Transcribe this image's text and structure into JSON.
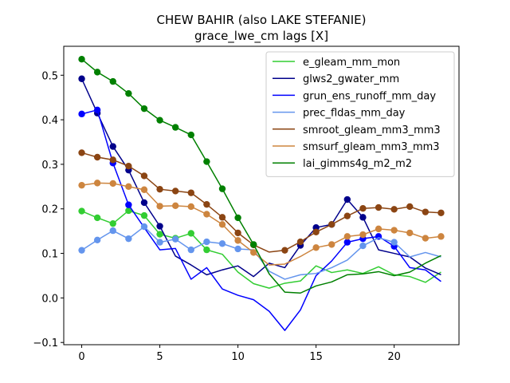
{
  "chart_data": {
    "type": "line",
    "title": "CHEW BAHIR (also LAKE STEFANIE)",
    "subtitle": "grace_lwe_cm lags [X]",
    "xlabel": "",
    "ylabel": "",
    "xlim": [
      -1.15,
      24.15
    ],
    "ylim": [
      -0.105,
      0.565
    ],
    "xticks": [
      0,
      5,
      10,
      15,
      20
    ],
    "yticks": [
      -0.1,
      0.0,
      0.1,
      0.2,
      0.3,
      0.4,
      0.5
    ],
    "ytick_labels": [
      "−0.1",
      "0.0",
      "0.1",
      "0.2",
      "0.3",
      "0.4",
      "0.5"
    ],
    "grid": false,
    "legend_position": "top-right",
    "x": [
      0,
      1,
      2,
      3,
      4,
      5,
      6,
      7,
      8,
      9,
      10,
      11,
      12,
      13,
      14,
      15,
      16,
      17,
      18,
      19,
      20,
      21,
      22,
      23
    ],
    "series": [
      {
        "name": "e_gleam_mm_mon",
        "color": "#32cd32",
        "values": [
          0.195,
          0.18,
          0.167,
          0.196,
          0.185,
          0.143,
          0.134,
          0.145,
          0.108,
          0.098,
          0.058,
          0.032,
          0.022,
          0.033,
          0.038,
          0.072,
          0.057,
          0.063,
          0.055,
          0.07,
          0.052,
          0.048,
          0.035,
          0.058
        ],
        "markers": [
          true,
          true,
          true,
          true,
          true,
          true,
          true,
          true,
          true,
          false,
          false,
          false,
          false,
          false,
          false,
          false,
          false,
          false,
          false,
          false,
          false,
          false,
          false,
          false
        ]
      },
      {
        "name": "glws2_gwater_mm",
        "color": "#00008b",
        "values": [
          0.492,
          0.415,
          0.34,
          0.287,
          0.214,
          0.161,
          0.094,
          0.074,
          0.052,
          0.063,
          0.072,
          0.048,
          0.078,
          0.068,
          0.118,
          0.158,
          0.165,
          0.221,
          0.181,
          0.108,
          0.1,
          0.092,
          0.067,
          0.052
        ],
        "markers": [
          true,
          true,
          true,
          true,
          true,
          true,
          false,
          false,
          false,
          false,
          false,
          false,
          false,
          false,
          true,
          true,
          true,
          true,
          true,
          false,
          false,
          false,
          false,
          false
        ]
      },
      {
        "name": "grun_ens_runoff_mm_day",
        "color": "#0000ff",
        "values": [
          0.413,
          0.422,
          0.303,
          0.209,
          0.158,
          0.108,
          0.111,
          0.042,
          0.068,
          0.02,
          0.006,
          -0.004,
          -0.03,
          -0.073,
          -0.027,
          0.05,
          0.083,
          0.125,
          0.133,
          0.138,
          0.116,
          0.068,
          0.063,
          0.037
        ],
        "markers": [
          true,
          true,
          true,
          true,
          false,
          false,
          false,
          false,
          false,
          false,
          false,
          false,
          false,
          false,
          false,
          false,
          false,
          true,
          true,
          true,
          true,
          false,
          false,
          false
        ]
      },
      {
        "name": "prec_fldas_mm_day",
        "color": "#6495ed",
        "values": [
          0.107,
          0.13,
          0.151,
          0.133,
          0.16,
          0.125,
          0.132,
          0.108,
          0.126,
          0.122,
          0.11,
          0.108,
          0.06,
          0.042,
          0.052,
          0.055,
          0.068,
          0.085,
          0.117,
          0.135,
          0.125,
          0.092,
          0.102,
          0.092
        ],
        "markers": [
          true,
          true,
          true,
          true,
          true,
          true,
          true,
          true,
          true,
          true,
          true,
          false,
          false,
          false,
          false,
          false,
          false,
          false,
          true,
          false,
          true,
          false,
          false,
          false
        ]
      },
      {
        "name": "smroot_gleam_mm3_mm3",
        "color": "#8b4513",
        "values": [
          0.326,
          0.316,
          0.31,
          0.296,
          0.274,
          0.244,
          0.24,
          0.236,
          0.21,
          0.181,
          0.146,
          0.119,
          0.103,
          0.107,
          0.126,
          0.148,
          0.165,
          0.184,
          0.201,
          0.203,
          0.199,
          0.205,
          0.193,
          0.191
        ],
        "markers": [
          true,
          true,
          true,
          true,
          true,
          true,
          true,
          true,
          true,
          true,
          true,
          true,
          false,
          true,
          true,
          true,
          true,
          true,
          true,
          true,
          true,
          true,
          true,
          true
        ]
      },
      {
        "name": "smsurf_gleam_mm3_mm3",
        "color": "#cd853f",
        "values": [
          0.253,
          0.258,
          0.257,
          0.25,
          0.243,
          0.206,
          0.207,
          0.205,
          0.188,
          0.165,
          0.129,
          0.102,
          0.074,
          0.076,
          0.093,
          0.113,
          0.12,
          0.138,
          0.142,
          0.155,
          0.152,
          0.146,
          0.134,
          0.138
        ],
        "markers": [
          true,
          true,
          true,
          true,
          true,
          true,
          true,
          true,
          true,
          true,
          true,
          true,
          false,
          false,
          false,
          true,
          true,
          true,
          true,
          true,
          true,
          true,
          true,
          true
        ]
      },
      {
        "name": "lai_gimms4g_m2_m2",
        "color": "#008000",
        "values": [
          0.536,
          0.507,
          0.486,
          0.459,
          0.425,
          0.399,
          0.383,
          0.366,
          0.306,
          0.245,
          0.18,
          0.12,
          0.054,
          0.013,
          0.011,
          0.027,
          0.036,
          0.052,
          0.054,
          0.059,
          0.05,
          0.058,
          0.078,
          0.095
        ],
        "markers": [
          true,
          true,
          true,
          true,
          true,
          true,
          true,
          true,
          true,
          true,
          true,
          true,
          false,
          false,
          false,
          false,
          false,
          false,
          false,
          false,
          false,
          false,
          false,
          false
        ]
      }
    ]
  }
}
